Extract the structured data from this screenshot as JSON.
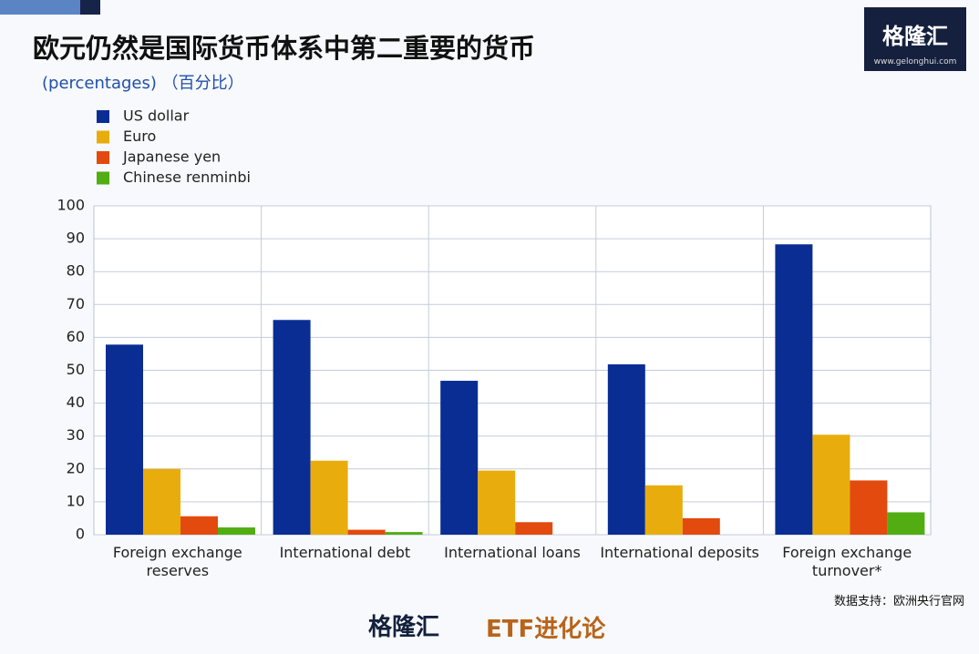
{
  "chart_data": {
    "type": "bar",
    "title": "欧元仍然是国际货币体系中第二重要的货币",
    "subtitle": "(percentages) （百分比）",
    "source": "数据支持：欧洲央行官网",
    "brand": {
      "name": "格隆汇",
      "url": "www.gelonghui.com",
      "column": "ETF进化论"
    },
    "categories": [
      "Foreign exchange reserves",
      "International debt",
      "International loans",
      "International deposits",
      "Foreign exchange turnover*"
    ],
    "series": [
      {
        "name": "US dollar",
        "color": "#0a2d94",
        "values": [
          57.8,
          65.3,
          46.8,
          51.8,
          88.3
        ]
      },
      {
        "name": "Euro",
        "color": "#e8ad0c",
        "values": [
          20,
          22.5,
          19.5,
          15,
          30.4
        ]
      },
      {
        "name": "Japanese yen",
        "color": "#e34a0e",
        "values": [
          5.6,
          1.5,
          3.8,
          5,
          16.5
        ]
      },
      {
        "name": "Chinese renminbi",
        "color": "#52ad12",
        "values": [
          2.2,
          0.8,
          null,
          null,
          6.8
        ]
      }
    ],
    "ylim": [
      0,
      100
    ],
    "yticks": [
      0,
      10,
      20,
      30,
      40,
      50,
      60,
      70,
      80,
      90,
      100
    ],
    "grid": true
  }
}
